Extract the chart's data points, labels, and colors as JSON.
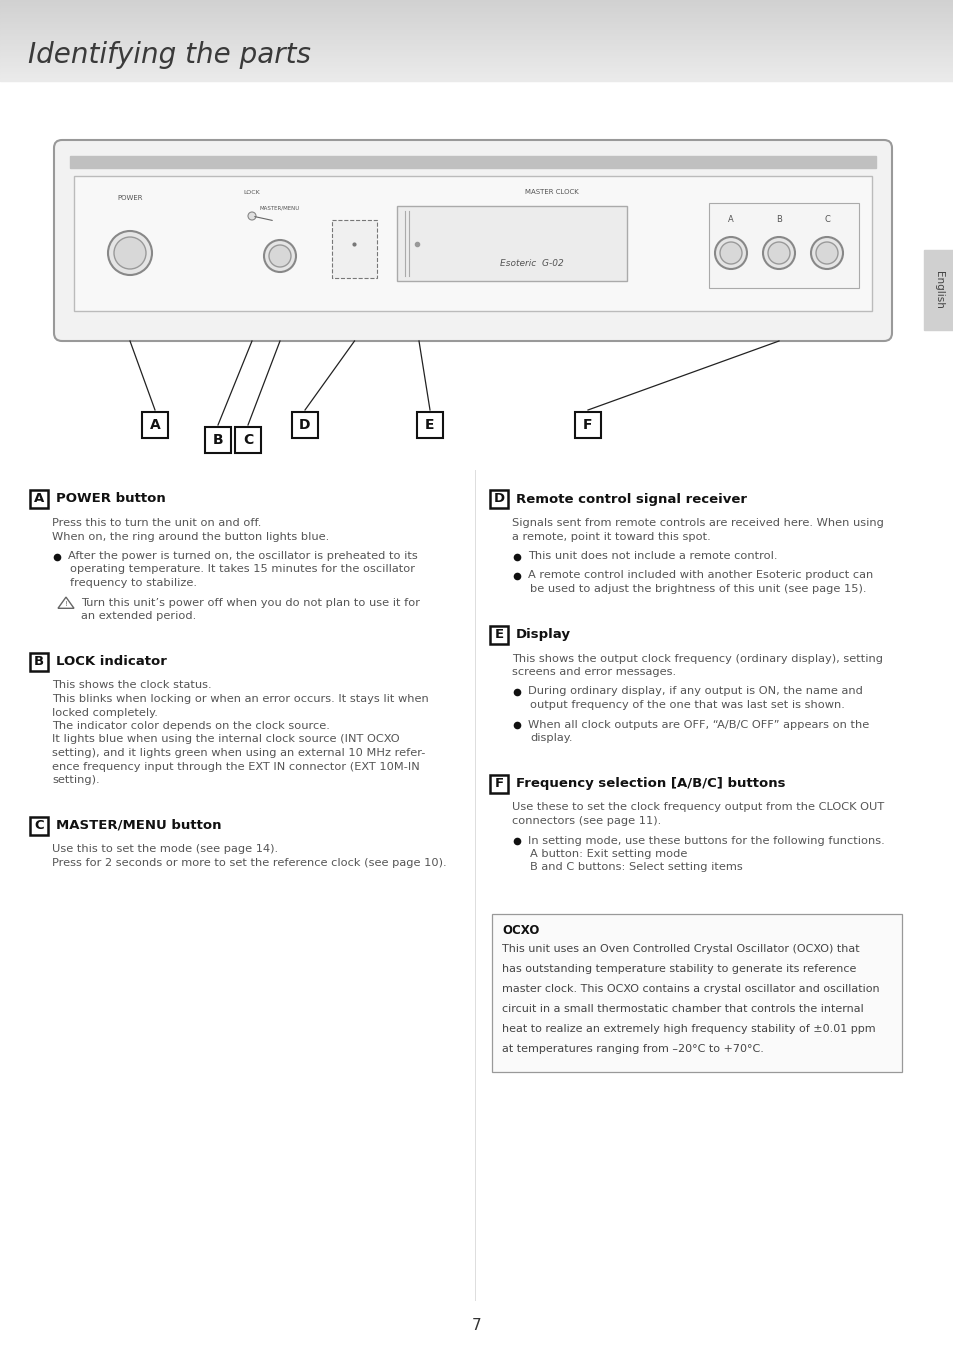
{
  "title": "Identifying the parts",
  "bg_color": "#ffffff",
  "header_bg_top": "#d8d8d8",
  "header_bg_bottom": "#e8e8e8",
  "page_number": "7",
  "right_tab_text": "English",
  "sections": [
    {
      "label": "A",
      "heading": "POWER button",
      "col": 0,
      "body": [
        {
          "type": "text",
          "text": "Press this to turn the unit on and off.\nWhen on, the ring around the button lights blue."
        },
        {
          "type": "bullet",
          "text": "After the power is turned on, the oscillator is preheated to its\noperating temperature. It takes 15 minutes for the oscillator\nfrequency to stabilize."
        },
        {
          "type": "warning",
          "text": "Turn this unit’s power off when you do not plan to use it for\nan extended period."
        }
      ]
    },
    {
      "label": "B",
      "heading": "LOCK indicator",
      "col": 0,
      "body": [
        {
          "type": "text",
          "text": "This shows the clock status.\nThis blinks when locking or when an error occurs. It stays lit when\nlocked completely.\nThe indicator color depends on the clock source.\nIt lights blue when using the internal clock source (INT OCXO\nsetting), and it lights green when using an external 10 MHz refer-\nence frequency input through the EXT IN connector (EXT 10M-IN\nsetting)."
        }
      ]
    },
    {
      "label": "C",
      "heading": "MASTER/MENU button",
      "col": 0,
      "body": [
        {
          "type": "text",
          "text": "Use this to set the mode (see page 14).\nPress for 2 seconds or more to set the reference clock (see page 10)."
        }
      ]
    },
    {
      "label": "D",
      "heading": "Remote control signal receiver",
      "col": 1,
      "body": [
        {
          "type": "text",
          "text": "Signals sent from remote controls are received here. When using\na remote, point it toward this spot."
        },
        {
          "type": "bullet",
          "text": "This unit does not include a remote control."
        },
        {
          "type": "bullet",
          "text": "A remote control included with another Esoteric product can\nbe used to adjust the brightness of this unit (see page 15)."
        }
      ]
    },
    {
      "label": "E",
      "heading": "Display",
      "col": 1,
      "body": [
        {
          "type": "text",
          "text": "This shows the output clock frequency (ordinary display), setting\nscreens and error messages."
        },
        {
          "type": "bullet",
          "text": "During ordinary display, if any output is ON, the name and\noutput frequency of the one that was last set is shown."
        },
        {
          "type": "bullet",
          "text": "When all clock outputs are OFF, “A/B/C OFF” appears on the\ndisplay."
        }
      ]
    },
    {
      "label": "F",
      "heading": "Frequency selection [A/B/C] buttons",
      "col": 1,
      "body": [
        {
          "type": "text",
          "text": "Use these to set the clock frequency output from the CLOCK OUT\nconnectors (see page 11)."
        },
        {
          "type": "bullet",
          "text": "In setting mode, use these buttons for the following functions.\nA button: Exit setting mode\nB and C buttons: Select setting items"
        }
      ]
    }
  ],
  "ocxo_box": {
    "title": "OCXO",
    "text": "This unit uses an Oven Controlled Crystal Oscillator (OCXO) that\nhas outstanding temperature stability to generate its reference\nmaster clock. This OCXO contains a crystal oscillator and oscillation\ncircuit in a small thermostatic chamber that controls the internal\nheat to realize an extremely high frequency stability of ±0.01 ppm\nat temperatures ranging from –20°C to +70°C."
  }
}
